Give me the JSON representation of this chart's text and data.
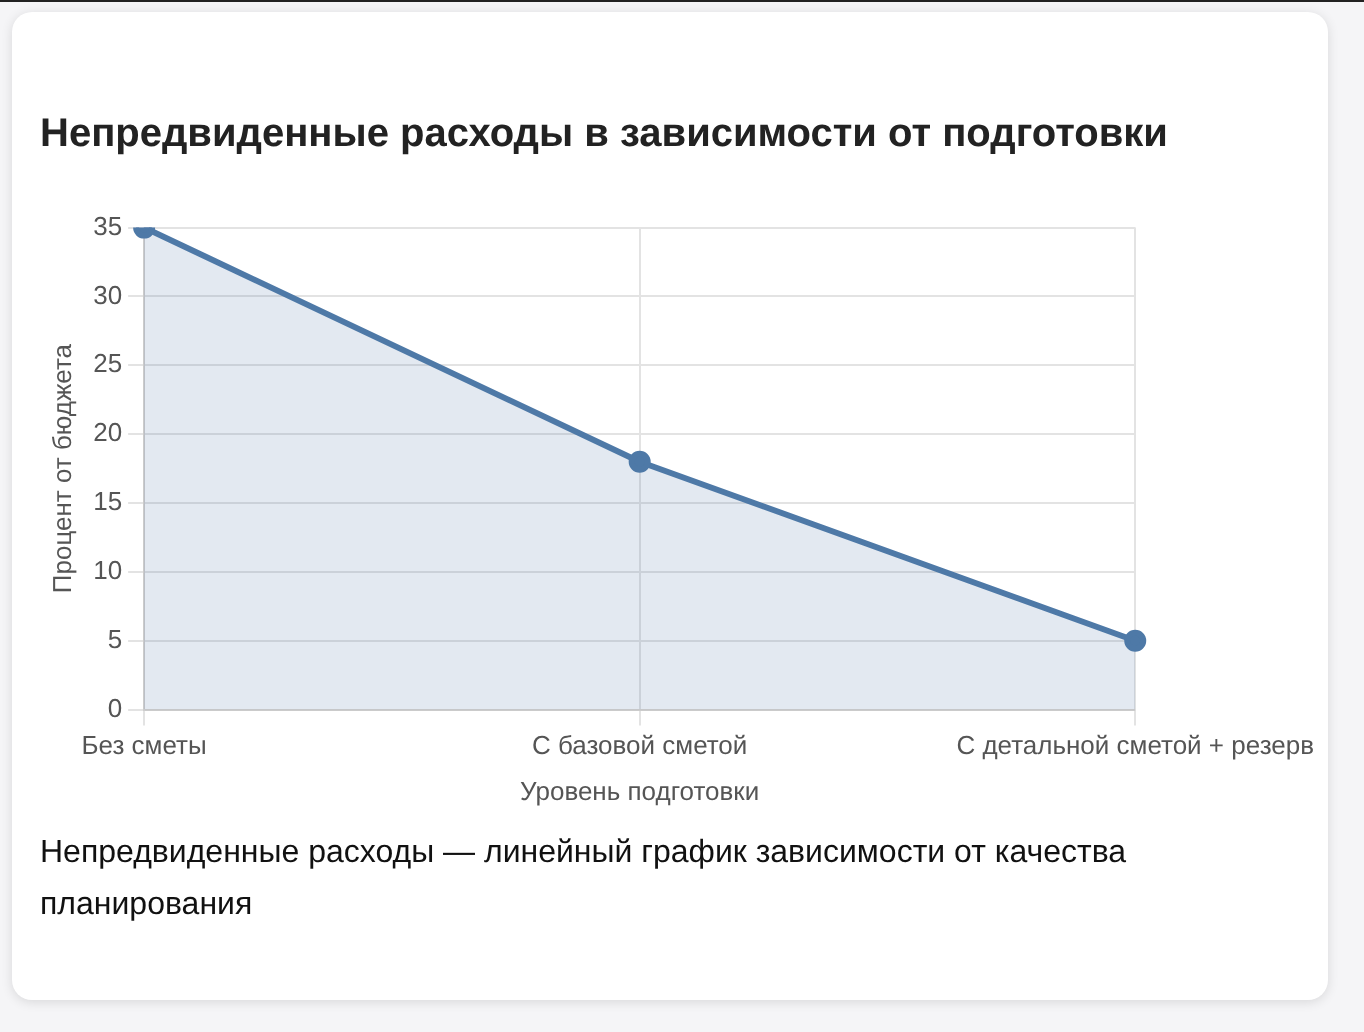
{
  "chart_data": {
    "type": "area",
    "title": "Непредвиденные расходы в зависимости от подготовки",
    "xlabel": "Уровень подготовки",
    "ylabel": "Процент от бюджета",
    "categories": [
      "Без сметы",
      "С базовой сметой",
      "С детальной сметой + резерв"
    ],
    "values": [
      35,
      18,
      5
    ],
    "color": "#4e79a7",
    "ylim": [
      0,
      35
    ],
    "yticks": [
      0,
      5,
      10,
      15,
      20,
      25,
      30,
      35
    ],
    "grid": true,
    "marker": "circle",
    "legend": false,
    "annotations": [
      "Непредвиденные расходы — линейный график зависимости от качества планирования"
    ]
  }
}
